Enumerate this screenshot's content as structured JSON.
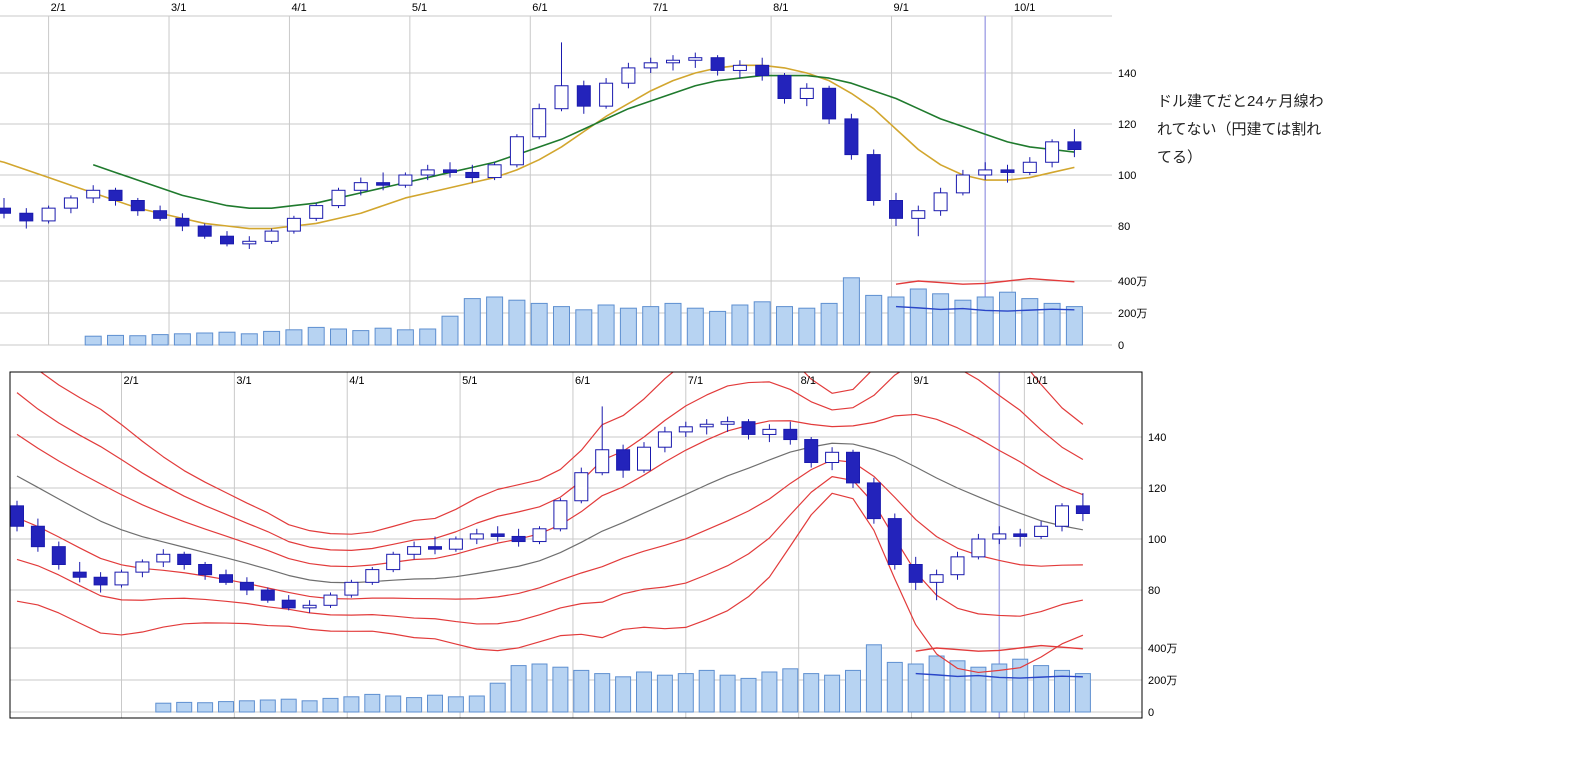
{
  "annotation": {
    "lines": [
      "ドル建てだと24ヶ月線わ",
      "れてない（円建ては割れ",
      "てる）"
    ]
  },
  "chart_data": {
    "type": "candlestick",
    "description": "Two stacked weekly candlestick panels with volume: top panel with short/long moving averages, bottom panel with Bollinger bands (1-2-3 sigma) and center line; a vertical cursor line near late September in both panels.",
    "x_month_labels": [
      "2/1",
      "3/1",
      "4/1",
      "5/1",
      "6/1",
      "7/1",
      "8/1",
      "9/1",
      "10/1"
    ],
    "price_ticks": [
      140,
      120,
      100,
      80
    ],
    "volume_ticks": [
      {
        "label": "400万",
        "value": 400
      },
      {
        "label": "200万",
        "value": 200
      },
      {
        "label": "0",
        "value": 0
      }
    ],
    "price_axis_range": [
      62,
      165
    ],
    "volume_axis_range_10k": [
      0,
      450
    ],
    "month_first_candle_index": 5,
    "candles_per_month": 5.4,
    "cursor_candle_index": 47,
    "grid": true,
    "legend": "none",
    "candles_ohlc": [
      [
        113,
        115,
        103,
        105
      ],
      [
        105,
        108,
        95,
        97
      ],
      [
        97,
        99,
        88,
        90
      ],
      [
        87,
        91,
        83,
        85
      ],
      [
        85,
        87,
        79,
        82
      ],
      [
        82,
        88,
        81,
        87
      ],
      [
        87,
        92,
        85,
        91
      ],
      [
        91,
        96,
        89,
        94
      ],
      [
        94,
        95,
        88,
        90
      ],
      [
        90,
        91,
        84,
        86
      ],
      [
        86,
        88,
        82,
        83
      ],
      [
        83,
        85,
        78,
        80
      ],
      [
        80,
        81,
        75,
        76
      ],
      [
        76,
        78,
        72,
        73
      ],
      [
        73,
        76,
        71,
        74
      ],
      [
        74,
        79,
        73,
        78
      ],
      [
        78,
        84,
        77,
        83
      ],
      [
        83,
        89,
        82,
        88
      ],
      [
        88,
        95,
        87,
        94
      ],
      [
        94,
        99,
        92,
        97
      ],
      [
        97,
        101,
        94,
        96
      ],
      [
        96,
        101,
        95,
        100
      ],
      [
        100,
        104,
        98,
        102
      ],
      [
        102,
        105,
        99,
        101
      ],
      [
        101,
        104,
        97,
        99
      ],
      [
        99,
        105,
        98,
        104
      ],
      [
        104,
        116,
        103,
        115
      ],
      [
        115,
        128,
        114,
        126
      ],
      [
        126,
        152,
        125,
        135
      ],
      [
        135,
        137,
        124,
        127
      ],
      [
        127,
        138,
        126,
        136
      ],
      [
        136,
        144,
        134,
        142
      ],
      [
        142,
        146,
        140,
        144
      ],
      [
        144,
        147,
        141,
        145
      ],
      [
        145,
        148,
        142,
        146
      ],
      [
        146,
        147,
        139,
        141
      ],
      [
        141,
        145,
        138,
        143
      ],
      [
        143,
        146,
        137,
        139
      ],
      [
        139,
        140,
        128,
        130
      ],
      [
        130,
        136,
        127,
        134
      ],
      [
        134,
        135,
        120,
        122
      ],
      [
        122,
        124,
        106,
        108
      ],
      [
        108,
        110,
        88,
        90
      ],
      [
        90,
        93,
        80,
        83
      ],
      [
        83,
        88,
        76,
        86
      ],
      [
        86,
        95,
        84,
        93
      ],
      [
        93,
        102,
        92,
        100
      ],
      [
        100,
        105,
        98,
        102
      ],
      [
        102,
        104,
        97,
        101
      ],
      [
        101,
        107,
        100,
        105
      ],
      [
        105,
        114,
        103,
        113
      ],
      [
        113,
        118,
        107,
        110
      ]
    ],
    "volumes_10k": [
      0,
      0,
      0,
      0,
      0,
      0,
      0,
      55,
      60,
      58,
      65,
      70,
      75,
      80,
      70,
      85,
      95,
      110,
      100,
      90,
      105,
      95,
      100,
      180,
      290,
      300,
      280,
      260,
      240,
      220,
      250,
      230,
      240,
      260,
      230,
      210,
      250,
      270,
      240,
      230,
      260,
      420,
      310,
      300,
      350,
      320,
      280,
      300,
      330,
      290,
      260,
      240
    ],
    "top_panel": {
      "ma_short_values": [
        112,
        110,
        107,
        105,
        102,
        99,
        96,
        93,
        90,
        87,
        85,
        83,
        81,
        80,
        79,
        79,
        80,
        81,
        83,
        85,
        88,
        91,
        93,
        95,
        97,
        99,
        102,
        106,
        111,
        117,
        123,
        128,
        133,
        137,
        140,
        142,
        143,
        143,
        142,
        140,
        137,
        132,
        126,
        118,
        110,
        104,
        100,
        98,
        98,
        99,
        101,
        103
      ],
      "ma_long_values": [
        null,
        null,
        null,
        null,
        null,
        null,
        null,
        104,
        101,
        98,
        95,
        92,
        90,
        88,
        87,
        87,
        88,
        89,
        91,
        93,
        95,
        97,
        99,
        101,
        103,
        105,
        108,
        111,
        114,
        118,
        122,
        126,
        129,
        132,
        135,
        137,
        138,
        139,
        139,
        139,
        138,
        136,
        133,
        130,
        126,
        122,
        119,
        116,
        113,
        111,
        110,
        109
      ],
      "volume_ma_red_values": [
        null,
        null,
        null,
        null,
        null,
        null,
        null,
        null,
        null,
        null,
        null,
        null,
        null,
        null,
        null,
        null,
        null,
        null,
        null,
        null,
        null,
        null,
        null,
        null,
        null,
        null,
        null,
        null,
        null,
        null,
        null,
        null,
        null,
        null,
        null,
        null,
        null,
        null,
        null,
        null,
        null,
        null,
        null,
        380,
        400,
        390,
        380,
        385,
        400,
        415,
        405,
        395
      ],
      "volume_ma_blue_values": [
        null,
        null,
        null,
        null,
        null,
        null,
        null,
        null,
        null,
        null,
        null,
        null,
        null,
        null,
        null,
        null,
        null,
        null,
        null,
        null,
        null,
        null,
        null,
        null,
        null,
        null,
        null,
        null,
        null,
        null,
        null,
        null,
        null,
        null,
        null,
        null,
        null,
        null,
        null,
        null,
        null,
        null,
        null,
        240,
        232,
        222,
        228,
        216,
        212,
        218,
        224,
        220
      ]
    },
    "bottom_panel": {
      "bollinger": {
        "window": 13,
        "sigma_multiples": [
          1,
          2,
          3
        ],
        "pre_close_seed": [
          160,
          155,
          149,
          143,
          137,
          131,
          126,
          121,
          117,
          113,
          110,
          108,
          106
        ]
      }
    },
    "colors": {
      "candle_up_fill": "#ffffff",
      "candle_down_fill": "#2323bb",
      "candle_stroke": "#1a1aae",
      "volume_fill": "#b7d3f2",
      "volume_stroke": "#5e8fd0",
      "ma_short": "#d2a62e",
      "ma_long": "#1f7a2d",
      "bollinger_band": "#e23b3b",
      "bollinger_center": "#6f6f6f",
      "volume_ma_red": "#e23b3b",
      "volume_ma_blue": "#2a46c8",
      "grid": "#c9c9c9",
      "cursor": "#a9a9e8",
      "border": "#000000",
      "label": "#000000"
    }
  }
}
